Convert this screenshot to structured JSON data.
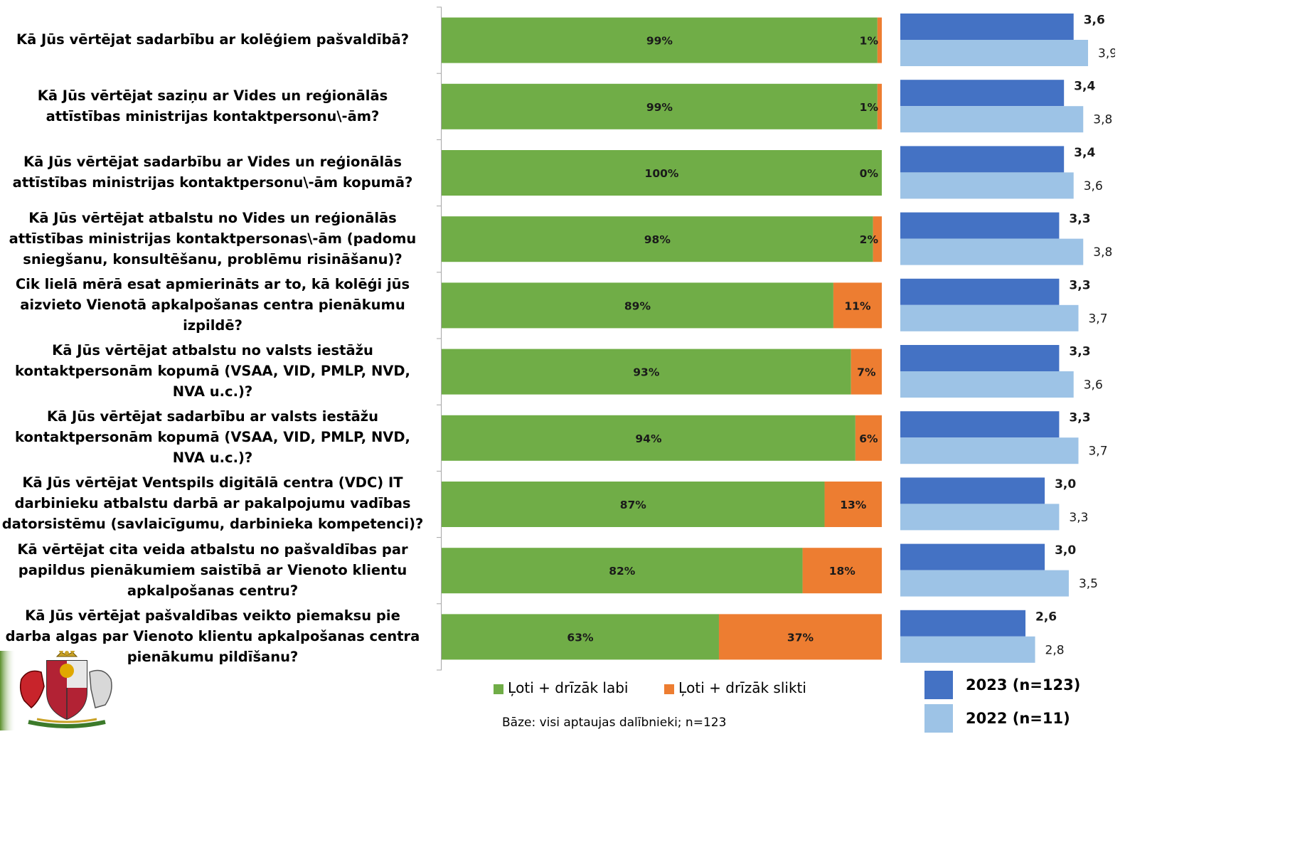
{
  "chart_data": [
    {
      "type": "bar",
      "stacked": true,
      "orientation": "horizontal",
      "categories": [
        "Kā Jūs vērtējat sadarbību ar kolēģiem pašvaldībā?",
        "Kā Jūs vērtējat saziņu ar Vides un reģionālās attīstības ministrijas kontaktpersonu\\-ām?",
        "Kā Jūs vērtējat sadarbību ar Vides un reģionālās attīstības ministrijas kontaktpersonu\\-ām kopumā?",
        "Kā Jūs vērtējat atbalstu no Vides un reģionālās attīstības ministrijas kontaktpersonas\\-ām (padomu sniegšanu, konsultēšanu, problēmu risināšanu)?",
        "Cik lielā mērā esat apmierināts ar to, kā kolēģi jūs aizvieto Vienotā apkalpošanas centra pienākumu izpildē?",
        "Kā Jūs vērtējat atbalstu no valsts iestāžu kontaktpersonām kopumā (VSAA, VID, PMLP, NVD, NVA u.c.)?",
        "Kā Jūs vērtējat sadarbību ar valsts iestāžu kontaktpersonām kopumā (VSAA, VID, PMLP, NVD, NVA u.c.)?",
        "Kā Jūs vērtējat  Ventspils digitālā centra (VDC) IT darbinieku atbalstu darbā ar pakalpojumu vadības datorsistēmu (savlaicīgumu, darbinieka kompetenci)?",
        "Kā vērtējat cita veida atbalstu no pašvaldības par  papildus pienākumiem saistībā ar Vienoto klientu apkalpošanas centru?",
        "Kā Jūs vērtējat pašvaldības veikto piemaksu pie darba algas par Vienoto klientu apkalpošanas centra pienākumu pildīšanu?"
      ],
      "series": [
        {
          "name": "Ļoti + drīzāk labi",
          "color": "#70ad47",
          "values": [
            99,
            99,
            100,
            98,
            89,
            93,
            94,
            87,
            82,
            63
          ],
          "labels": [
            "99%",
            "99%",
            "100%",
            "98%",
            "89%",
            "93%",
            "94%",
            "87%",
            "82%",
            "63%"
          ]
        },
        {
          "name": "Ļoti + drīzāk slikti",
          "color": "#ed7d31",
          "values": [
            1,
            1,
            0,
            2,
            11,
            7,
            6,
            13,
            18,
            37
          ],
          "labels": [
            "1%",
            "1%",
            "0%",
            "2%",
            "11%",
            "7%",
            "6%",
            "13%",
            "18%",
            "37%"
          ]
        }
      ],
      "xlim": [
        0,
        100
      ],
      "legend": "bottom"
    },
    {
      "type": "bar",
      "orientation": "horizontal",
      "series": [
        {
          "name": "2023 (n=123)",
          "color": "#4472c4",
          "values": [
            3.6,
            3.4,
            3.4,
            3.3,
            3.3,
            3.3,
            3.3,
            3.0,
            3.0,
            2.6
          ],
          "labels": [
            "3,6",
            "3,4",
            "3,4",
            "3,3",
            "3,3",
            "3,3",
            "3,3",
            "3,0",
            "3,0",
            "2,6"
          ]
        },
        {
          "name": "2022 (n=11)",
          "color": "#9dc3e6",
          "values": [
            3.9,
            3.8,
            3.6,
            3.8,
            3.7,
            3.6,
            3.7,
            3.3,
            3.5,
            2.8
          ],
          "labels": [
            "3,9",
            "3,8",
            "3,6",
            "3,8",
            "3,7",
            "3,6",
            "3,7",
            "3,3",
            "3,5",
            "2,8"
          ]
        }
      ],
      "legend": "bottom"
    }
  ],
  "base_note": "Bāze: visi aptaujas dalībnieki; n=123"
}
